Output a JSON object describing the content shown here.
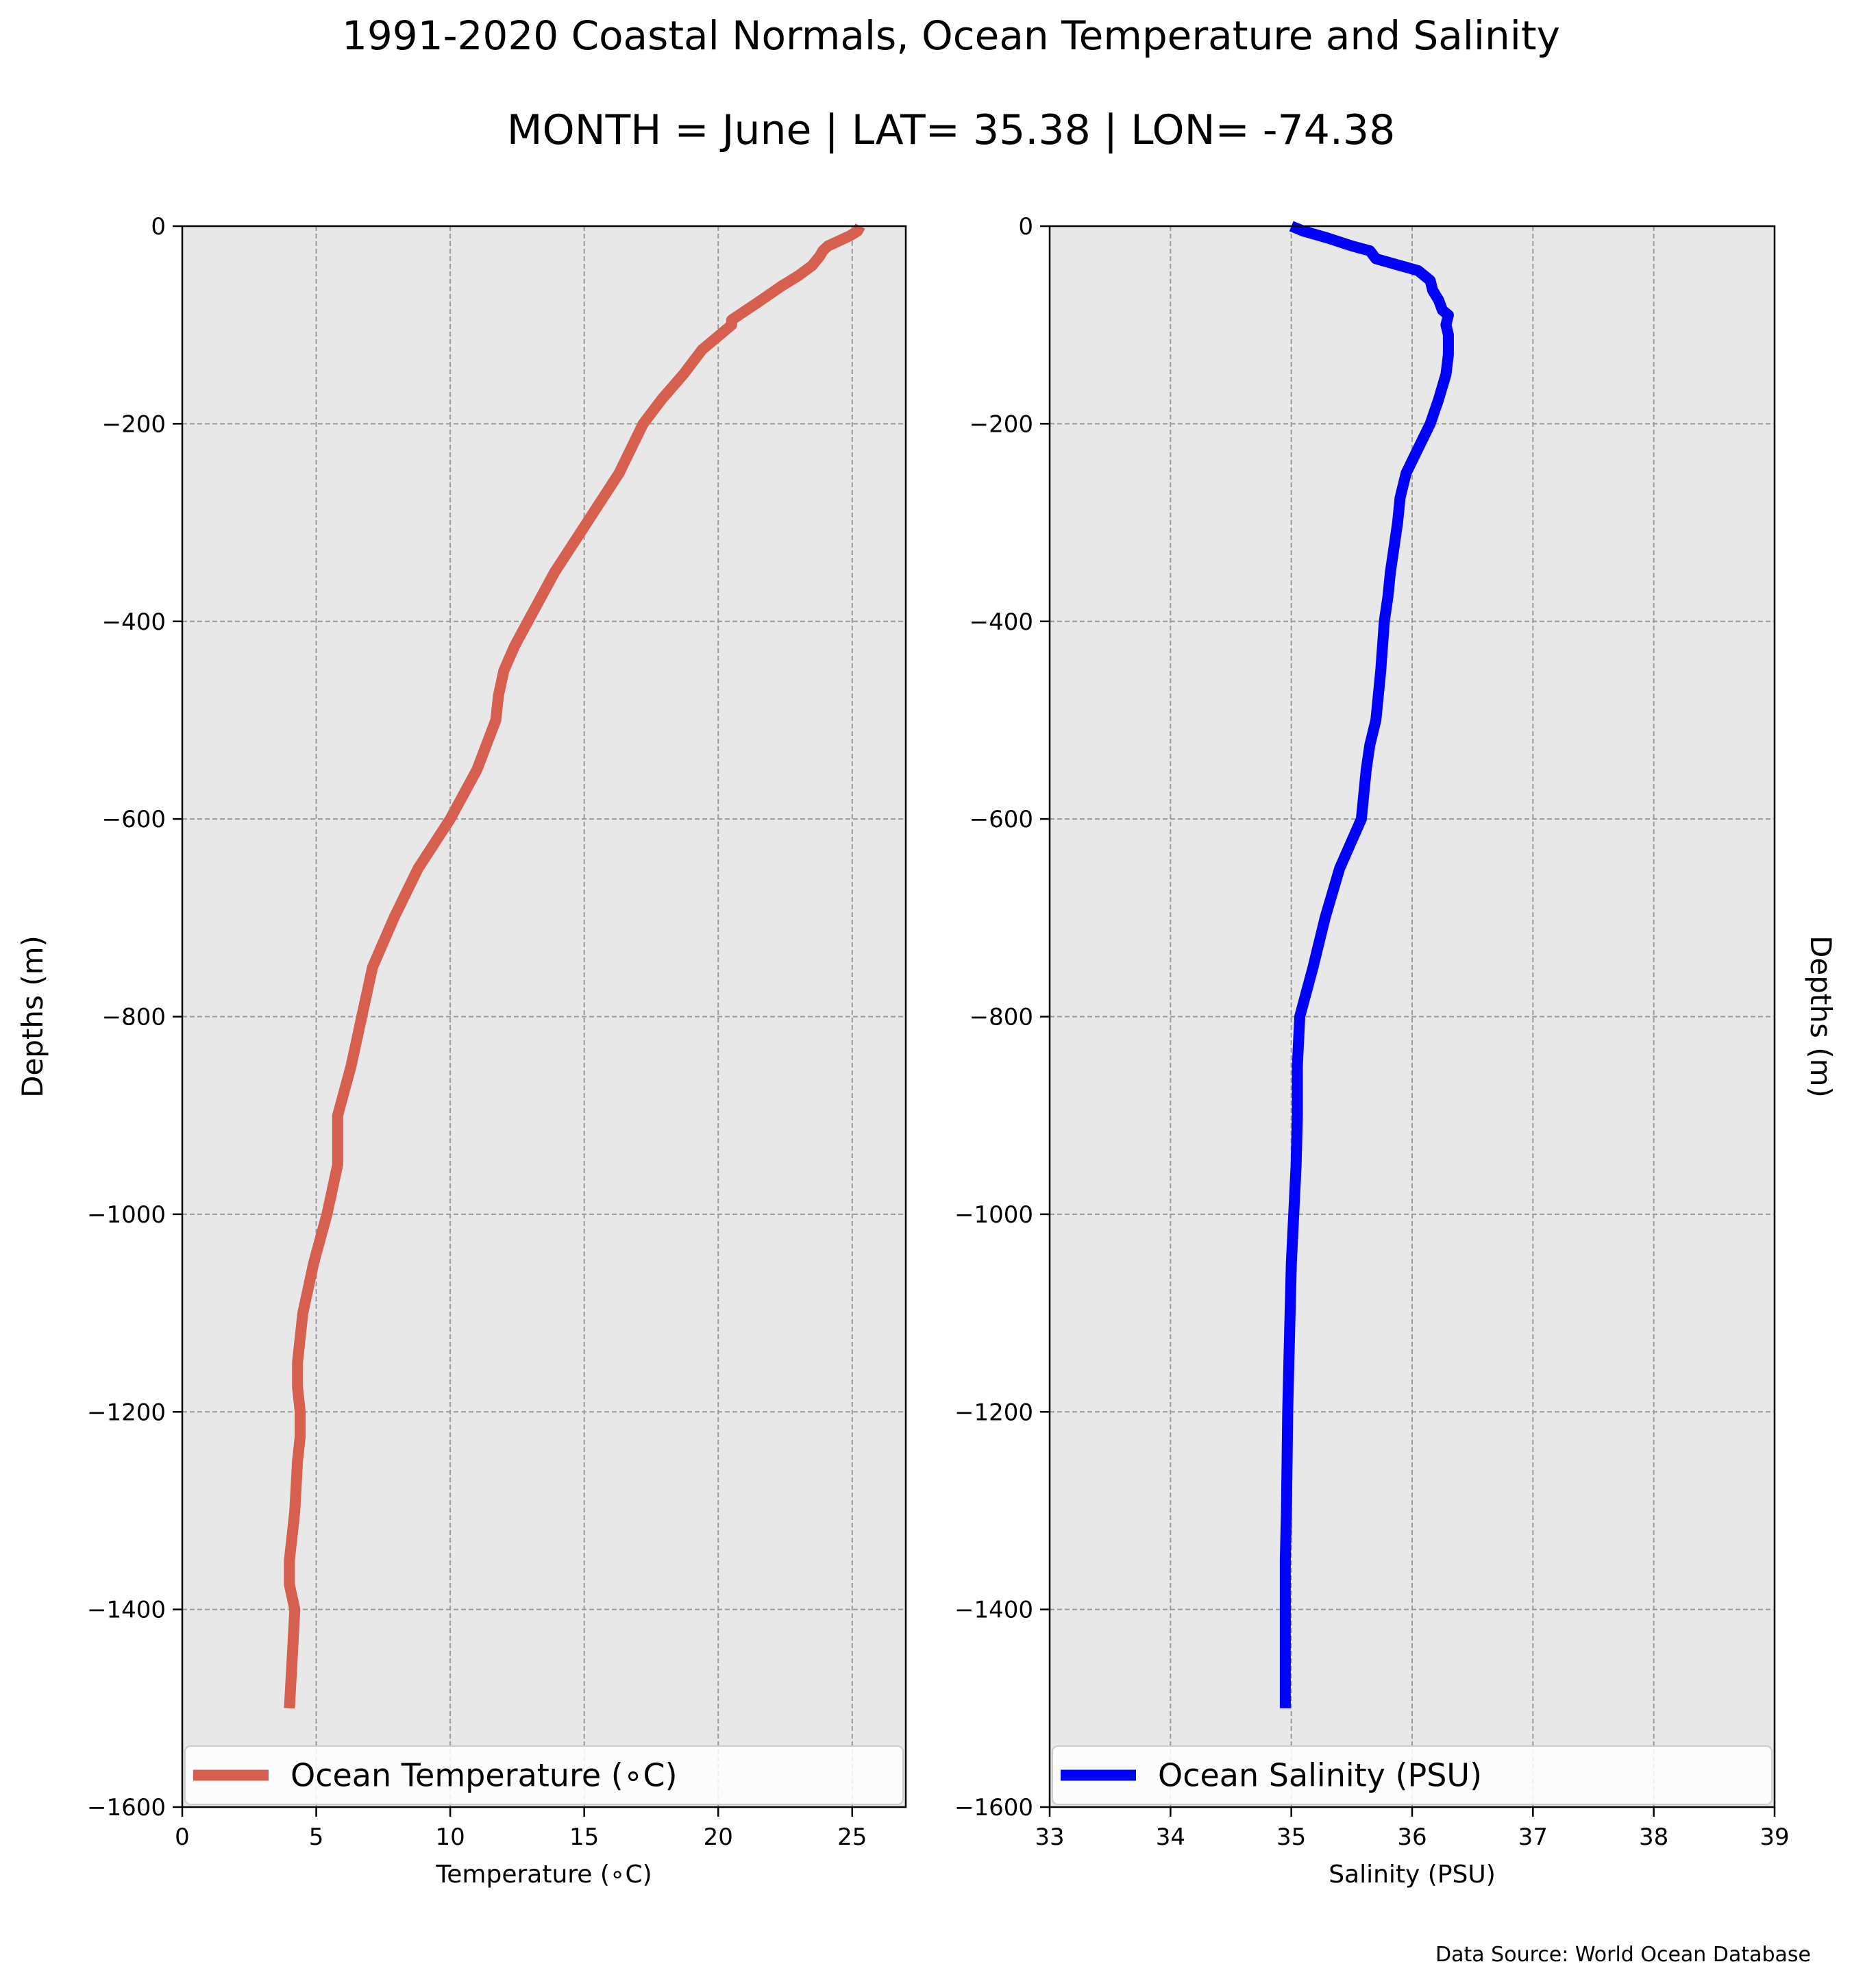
{
  "figure": {
    "title": "1991-2020 Coastal Normals, Ocean Temperature and Salinity",
    "subtitle": "MONTH = June | LAT= 35.38 | LON= -74.38",
    "source_note": "Data Source: World Ocean Database"
  },
  "chart_data": [
    {
      "type": "line",
      "xlabel": "Temperature (∘C)",
      "ylabel": "Depths (m)",
      "ylabel_side": "left",
      "xlim": [
        0,
        27
      ],
      "ylim": [
        -1600,
        0
      ],
      "xticks": [
        0,
        5,
        10,
        15,
        20,
        25
      ],
      "yticks": [
        0,
        -200,
        -400,
        -600,
        -800,
        -1000,
        -1200,
        -1400,
        -1600
      ],
      "grid": true,
      "legend_position": "bottom",
      "series": [
        {
          "name": "Ocean Temperature (∘C)",
          "color": "#d6604d",
          "x": [
            25.3,
            25.2,
            24.9,
            24.5,
            24.1,
            23.9,
            23.8,
            23.5,
            23.0,
            22.4,
            21.6,
            20.5,
            20.5,
            19.4,
            18.7,
            17.9,
            17.2,
            16.3,
            15.1,
            13.9,
            12.9,
            12.4,
            12.0,
            11.8,
            11.7,
            11.0,
            10.0,
            8.8,
            7.9,
            7.1,
            6.7,
            6.3,
            5.8,
            5.8,
            5.8,
            5.6,
            5.4,
            4.9,
            4.5,
            4.3,
            4.3,
            4.4,
            4.4,
            4.3,
            4.2,
            4.1,
            4.0,
            4.0,
            4.2,
            4.1,
            4.0
          ],
          "y": [
            0,
            -5,
            -10,
            -15,
            -20,
            -25,
            -30,
            -40,
            -50,
            -60,
            -75,
            -95,
            -100,
            -125,
            -150,
            -175,
            -200,
            -250,
            -300,
            -350,
            -400,
            -425,
            -450,
            -475,
            -500,
            -550,
            -600,
            -650,
            -700,
            -750,
            -800,
            -850,
            -900,
            -925,
            -950,
            -975,
            -1000,
            -1050,
            -1100,
            -1150,
            -1175,
            -1200,
            -1225,
            -1250,
            -1300,
            -1325,
            -1350,
            -1375,
            -1400,
            -1450,
            -1500
          ]
        }
      ]
    },
    {
      "type": "line",
      "xlabel": "Salinity (PSU)",
      "ylabel": "Depths (m)",
      "ylabel_side": "right",
      "xlim": [
        33,
        39
      ],
      "ylim": [
        -1600,
        0
      ],
      "xticks": [
        33,
        34,
        35,
        36,
        37,
        38,
        39
      ],
      "yticks": [
        0,
        -200,
        -400,
        -600,
        -800,
        -1000,
        -1200,
        -1400,
        -1600
      ],
      "grid": true,
      "legend_position": "bottom",
      "series": [
        {
          "name": "Ocean Salinity (PSU)",
          "color": "#0000ff",
          "x": [
            35.0,
            35.1,
            35.3,
            35.5,
            35.65,
            35.7,
            36.05,
            36.15,
            36.17,
            36.22,
            36.25,
            36.3,
            36.28,
            36.3,
            36.3,
            36.3,
            36.28,
            36.22,
            36.15,
            36.05,
            35.95,
            35.9,
            35.88,
            35.85,
            35.82,
            35.8,
            35.77,
            35.74,
            35.7,
            35.65,
            35.62,
            35.58,
            35.4,
            35.28,
            35.18,
            35.07,
            35.05,
            35.05,
            35.04,
            35.02,
            35.0,
            34.99,
            34.98,
            34.97,
            34.96,
            34.95,
            34.95
          ],
          "y": [
            0,
            -5,
            -12,
            -20,
            -25,
            -33,
            -45,
            -55,
            -65,
            -75,
            -85,
            -90,
            -100,
            -110,
            -125,
            -130,
            -150,
            -175,
            -200,
            -225,
            -250,
            -275,
            -300,
            -325,
            -350,
            -375,
            -400,
            -450,
            -500,
            -525,
            -550,
            -600,
            -650,
            -700,
            -750,
            -800,
            -850,
            -900,
            -950,
            -1000,
            -1050,
            -1100,
            -1150,
            -1200,
            -1300,
            -1350,
            -1500
          ]
        }
      ]
    }
  ]
}
